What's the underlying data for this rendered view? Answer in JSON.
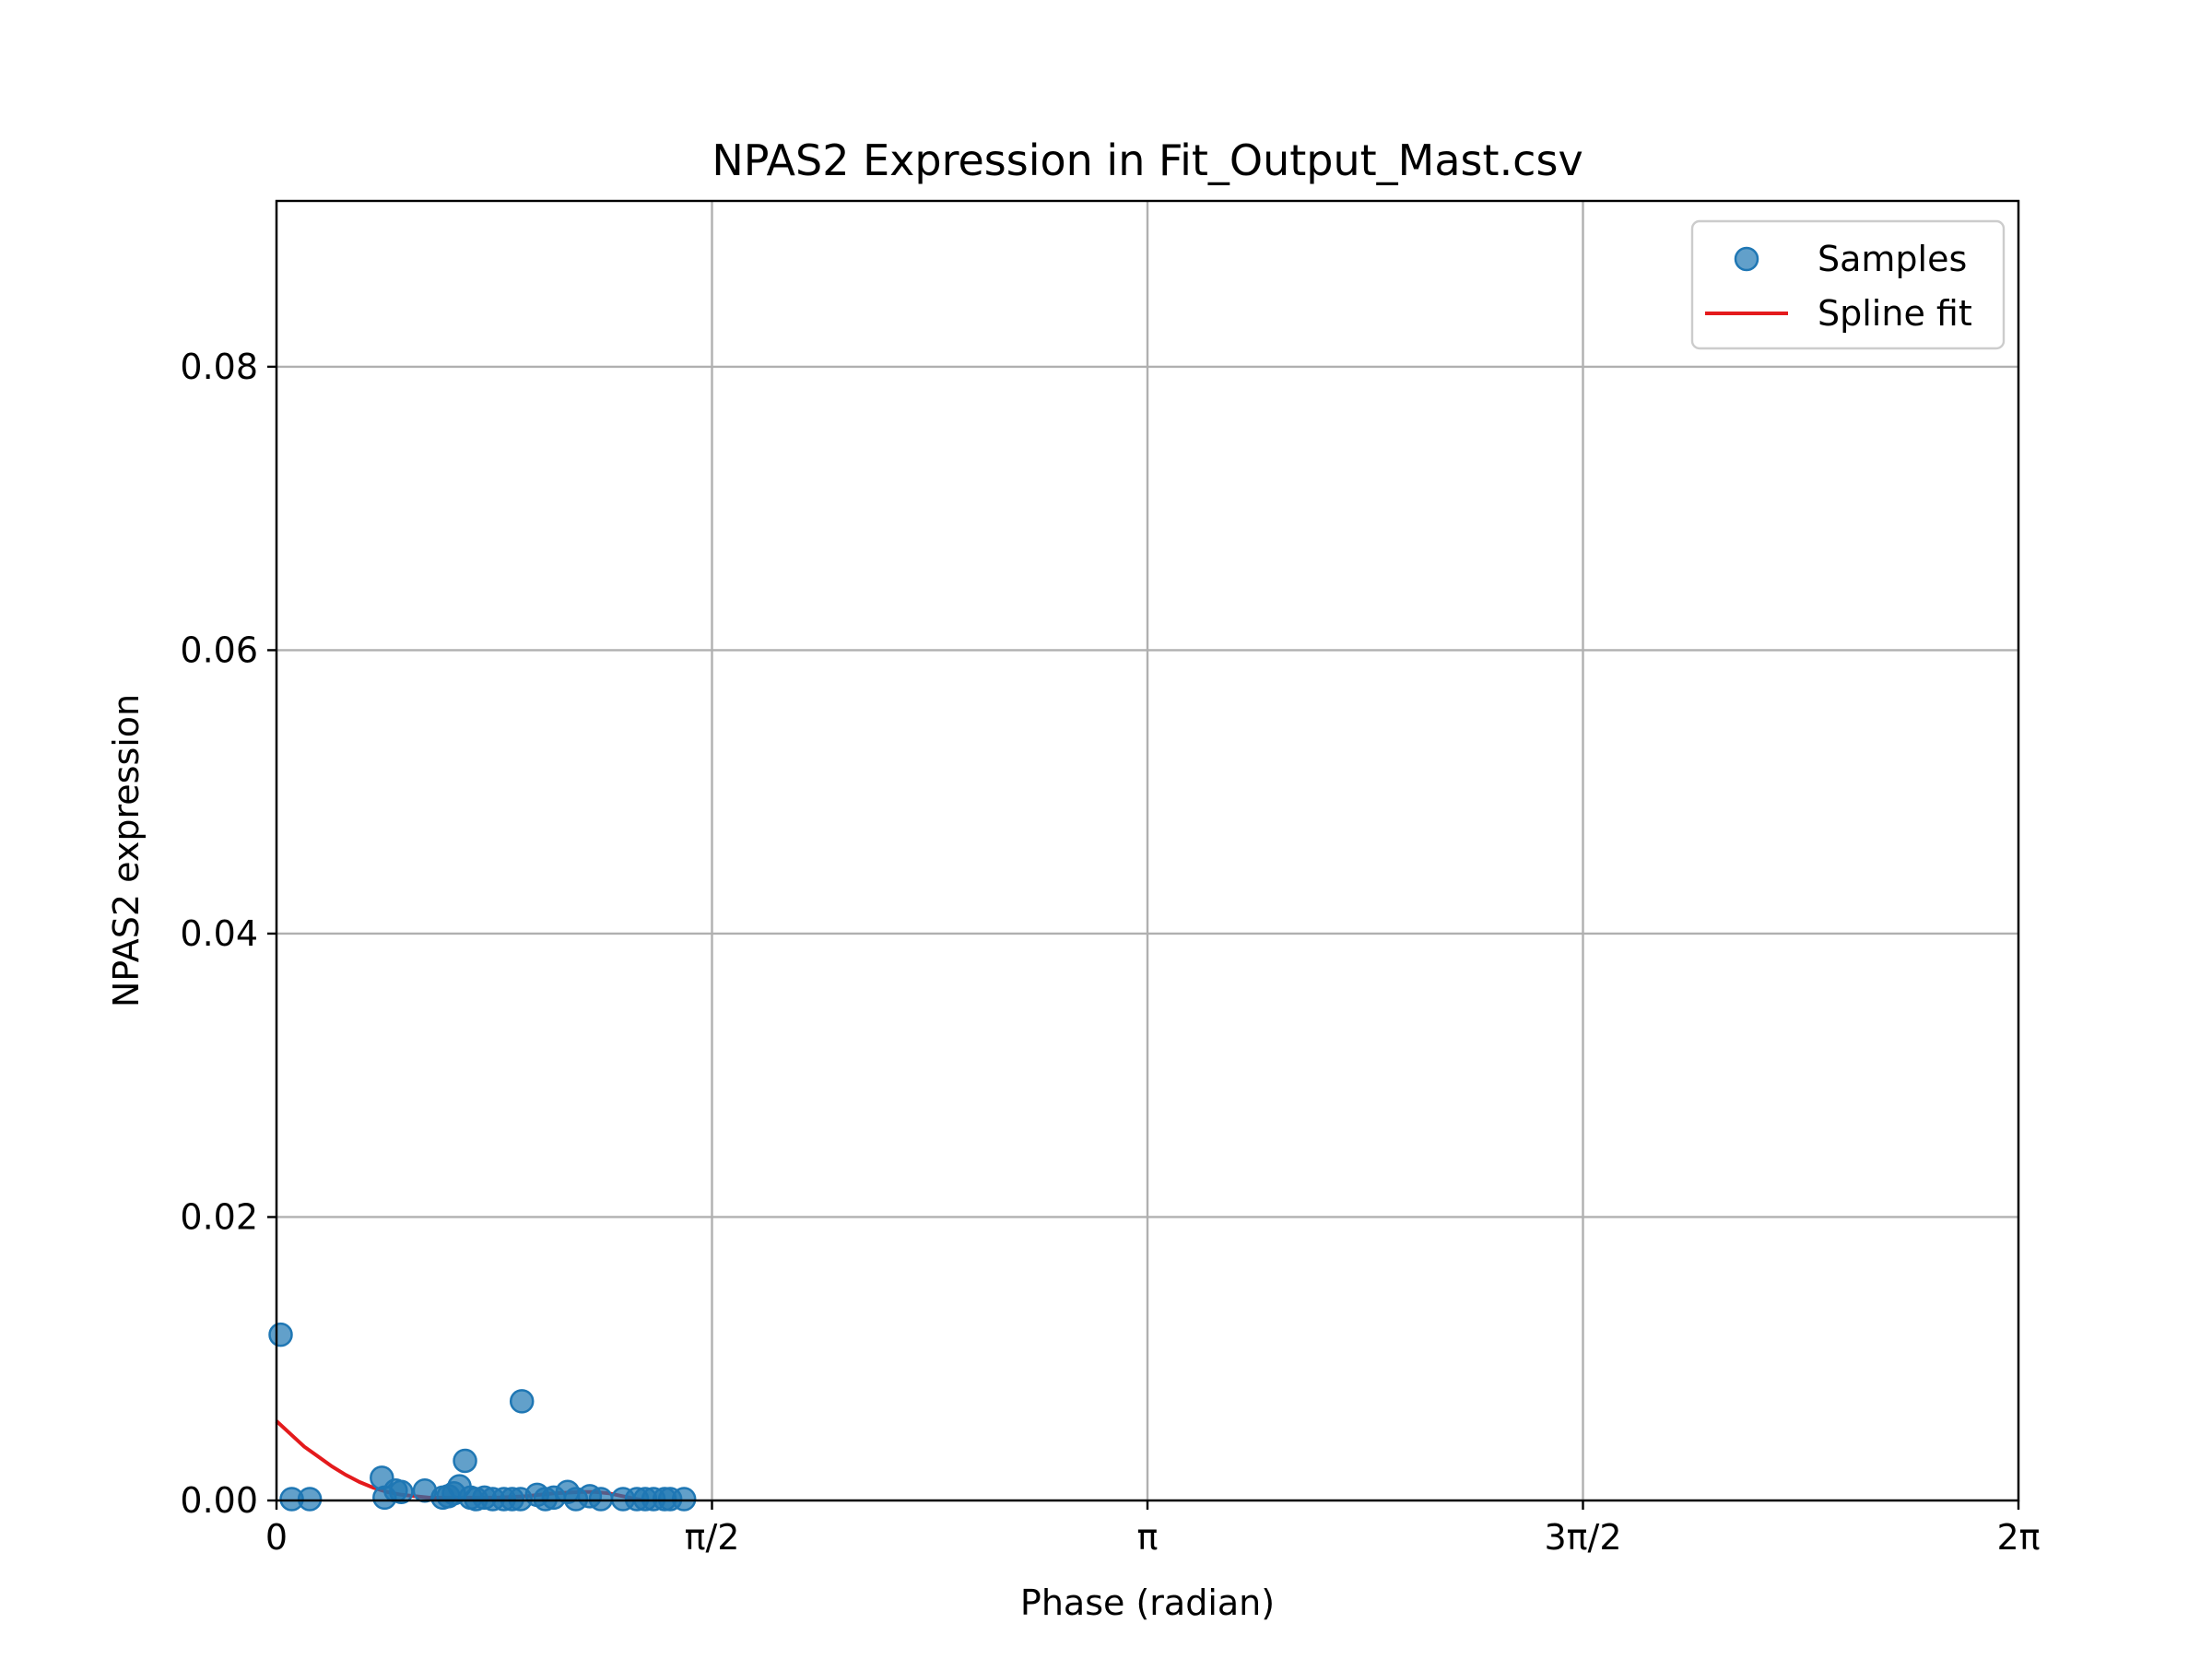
{
  "chart_data": {
    "type": "scatter",
    "title": "NPAS2 Expression in Fit_Output_Mast.csv",
    "xlabel": "Phase (radian)",
    "ylabel": "NPAS2 expression",
    "xlim": [
      0,
      6.283185307
    ],
    "ylim": [
      0,
      0.0917
    ],
    "x_ticks": [
      {
        "value": 0,
        "label": "0"
      },
      {
        "value": 1.570796327,
        "label": "π/2"
      },
      {
        "value": 3.141592654,
        "label": "π"
      },
      {
        "value": 4.71238898,
        "label": "3π/2"
      },
      {
        "value": 6.283185307,
        "label": "2π"
      }
    ],
    "y_ticks": [
      {
        "value": 0.0,
        "label": "0.00"
      },
      {
        "value": 0.02,
        "label": "0.02"
      },
      {
        "value": 0.04,
        "label": "0.04"
      },
      {
        "value": 0.06,
        "label": "0.06"
      },
      {
        "value": 0.08,
        "label": "0.08"
      }
    ],
    "grid": true,
    "legend": {
      "position": "top-right",
      "entries": [
        "Samples",
        "Spline fit"
      ]
    },
    "series": [
      {
        "name": "Samples",
        "kind": "scatter",
        "color": "#1f77b4",
        "points": [
          [
            0.015,
            0.0117
          ],
          [
            0.055,
            0.0001
          ],
          [
            0.12,
            0.0001
          ],
          [
            0.38,
            0.0016
          ],
          [
            0.39,
            0.0002
          ],
          [
            0.43,
            0.0007
          ],
          [
            0.45,
            0.0006
          ],
          [
            0.535,
            0.0007
          ],
          [
            0.6,
            0.0002
          ],
          [
            0.62,
            0.0003
          ],
          [
            0.64,
            0.0005
          ],
          [
            0.66,
            0.001
          ],
          [
            0.68,
            0.0028
          ],
          [
            0.7,
            0.0002
          ],
          [
            0.72,
            0.0001
          ],
          [
            0.75,
            0.0002
          ],
          [
            0.78,
            0.0001
          ],
          [
            0.82,
            0.0001
          ],
          [
            0.85,
            0.0001
          ],
          [
            0.88,
            0.0001
          ],
          [
            0.885,
            0.007
          ],
          [
            0.94,
            0.0004
          ],
          [
            0.97,
            0.0001
          ],
          [
            1.0,
            0.0002
          ],
          [
            1.05,
            0.0006
          ],
          [
            1.08,
            0.0001
          ],
          [
            1.13,
            0.0003
          ],
          [
            1.17,
            0.0001
          ],
          [
            1.25,
            0.0001
          ],
          [
            1.3,
            0.0001
          ],
          [
            1.33,
            0.0001
          ],
          [
            1.36,
            0.0001
          ],
          [
            1.4,
            0.0001
          ],
          [
            1.42,
            0.0001
          ],
          [
            1.47,
            0.0001
          ]
        ]
      },
      {
        "name": "Spline fit",
        "kind": "line",
        "color": "#e41a1c",
        "points": [
          [
            0.0,
            0.0056
          ],
          [
            0.05,
            0.0047
          ],
          [
            0.1,
            0.0038
          ],
          [
            0.15,
            0.0031
          ],
          [
            0.2,
            0.0024
          ],
          [
            0.25,
            0.0018
          ],
          [
            0.3,
            0.0013
          ],
          [
            0.35,
            0.0009
          ],
          [
            0.4,
            0.0006
          ],
          [
            0.45,
            0.0004
          ],
          [
            0.5,
            0.0003
          ],
          [
            0.55,
            0.0002
          ],
          [
            0.6,
            0.0002
          ],
          [
            0.7,
            0.0002
          ],
          [
            0.8,
            0.0002
          ],
          [
            0.9,
            0.0003
          ],
          [
            1.0,
            0.0005
          ],
          [
            1.1,
            0.0006
          ],
          [
            1.15,
            0.0006
          ],
          [
            1.2,
            0.0005
          ],
          [
            1.25,
            0.0003
          ],
          [
            1.3,
            0.0001
          ],
          [
            1.33,
            0.0
          ]
        ]
      }
    ]
  }
}
